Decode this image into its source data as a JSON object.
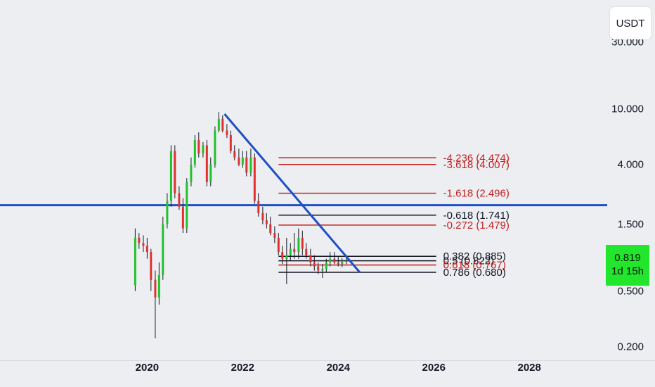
{
  "quote_unit": "USDT",
  "y_axis": {
    "ticks": [
      {
        "value": 30,
        "label": "30.000"
      },
      {
        "value": 10,
        "label": "10.000"
      },
      {
        "value": 4,
        "label": "4.000"
      },
      {
        "value": 1.5,
        "label": "1.500"
      },
      {
        "value": 0.5,
        "label": "0.500"
      },
      {
        "value": 0.2,
        "label": "0.200"
      }
    ]
  },
  "x_axis": {
    "ticks": [
      {
        "value": 2020,
        "label": "2020"
      },
      {
        "value": 2022,
        "label": "2022"
      },
      {
        "value": 2024,
        "label": "2024"
      },
      {
        "value": 2026,
        "label": "2026"
      },
      {
        "value": 2028,
        "label": "2028"
      }
    ]
  },
  "current_price": {
    "value": 0.819,
    "label": "0.819",
    "countdown": "1d 15h",
    "color": "#21e62b"
  },
  "colors": {
    "background": "#eceef2",
    "up": "#21c12b",
    "down": "#e0312f",
    "wick": "#131722",
    "trend": "#1e4fc4",
    "fib_black": "#131722",
    "fib_red": "#c4201c"
  },
  "chart_data": {
    "type": "candlestick",
    "title": "",
    "xlabel": "",
    "ylabel": "",
    "y_scale": "log",
    "xlim": [
      2016.92,
      2029.63
    ],
    "ylim": [
      0.16,
      60
    ],
    "series": [
      {
        "name": "",
        "x": [
          2019.75,
          2019.83,
          2019.92,
          2020.0,
          2020.08,
          2020.17,
          2020.25,
          2020.33,
          2020.42,
          2020.5,
          2020.58,
          2020.67,
          2020.75,
          2020.83,
          2020.92,
          2021.0,
          2021.08,
          2021.17,
          2021.25,
          2021.33,
          2021.42,
          2021.5,
          2021.58,
          2021.67,
          2021.75,
          2021.83,
          2021.92,
          2022.0,
          2022.08,
          2022.17,
          2022.25,
          2022.33,
          2022.42,
          2022.5,
          2022.58,
          2022.67,
          2022.75,
          2022.83,
          2022.92,
          2023.0,
          2023.08,
          2023.17,
          2023.25,
          2023.33,
          2023.42,
          2023.5,
          2023.58,
          2023.67,
          2023.75,
          2023.83,
          2023.92,
          2024.0,
          2024.08,
          2024.17
        ],
        "open": [
          0.55,
          1.2,
          1.1,
          1.05,
          0.95,
          0.6,
          0.45,
          0.65,
          1.5,
          2.2,
          5.0,
          2.5,
          2.0,
          1.4,
          3.0,
          4.0,
          6.0,
          4.8,
          5.5,
          3.0,
          4.0,
          7.0,
          8.5,
          7.0,
          6.5,
          5.0,
          4.5,
          4.0,
          4.5,
          3.5,
          4.5,
          2.2,
          1.8,
          1.6,
          1.5,
          1.3,
          1.2,
          0.95,
          0.85,
          0.9,
          1.0,
          0.95,
          1.2,
          1.0,
          0.9,
          0.8,
          0.75,
          0.7,
          0.72,
          0.8,
          0.85,
          0.8,
          0.78,
          0.82
        ],
        "high": [
          1.4,
          1.3,
          1.25,
          1.2,
          1.0,
          0.7,
          0.8,
          1.7,
          2.5,
          5.5,
          5.5,
          2.8,
          2.3,
          3.2,
          4.5,
          6.5,
          6.8,
          5.8,
          6.0,
          4.5,
          7.5,
          9.5,
          9.0,
          7.8,
          7.0,
          5.5,
          5.2,
          5.0,
          5.0,
          5.2,
          4.8,
          2.5,
          2.0,
          1.8,
          1.7,
          1.45,
          1.3,
          1.05,
          1.2,
          1.1,
          1.3,
          1.4,
          1.35,
          1.1,
          1.0,
          0.9,
          0.8,
          0.78,
          0.85,
          0.95,
          0.95,
          0.88,
          0.86,
          0.9
        ],
        "low": [
          0.5,
          1.0,
          0.95,
          0.85,
          0.5,
          0.23,
          0.4,
          0.6,
          1.4,
          2.0,
          2.3,
          1.9,
          1.3,
          1.3,
          2.8,
          3.8,
          4.5,
          4.5,
          2.8,
          2.8,
          3.8,
          6.8,
          6.8,
          6.2,
          4.8,
          4.3,
          3.9,
          3.8,
          3.3,
          3.3,
          2.1,
          1.7,
          1.5,
          1.4,
          1.25,
          1.1,
          0.9,
          0.78,
          0.56,
          0.82,
          0.85,
          0.85,
          0.9,
          0.85,
          0.75,
          0.7,
          0.66,
          0.62,
          0.68,
          0.75,
          0.78,
          0.75,
          0.74,
          0.78
        ],
        "close": [
          1.2,
          1.1,
          1.05,
          0.95,
          0.6,
          0.45,
          0.65,
          1.5,
          2.2,
          5.0,
          2.5,
          2.0,
          1.4,
          3.0,
          4.0,
          6.0,
          4.8,
          5.5,
          3.0,
          4.0,
          7.0,
          8.5,
          7.0,
          6.5,
          5.0,
          4.5,
          4.0,
          4.5,
          3.5,
          4.5,
          2.2,
          1.8,
          1.6,
          1.5,
          1.3,
          1.2,
          0.95,
          0.85,
          0.9,
          1.0,
          0.95,
          1.2,
          1.0,
          0.9,
          0.8,
          0.75,
          0.7,
          0.72,
          0.8,
          0.85,
          0.8,
          0.78,
          0.82,
          0.819
        ]
      }
    ],
    "horizontal_lines": [
      {
        "price": 2.05,
        "color": "#1e4fc4",
        "label": ""
      }
    ],
    "trend_lines": [
      {
        "x1": 2021.62,
        "y1": 9.2,
        "x2": 2024.45,
        "y2": 0.68,
        "color": "#1e4fc4"
      }
    ],
    "fib_levels": [
      {
        "ratio": "-4.236",
        "price": 4.474,
        "label": "-4.236 (4.474)",
        "color": "#c4201c"
      },
      {
        "ratio": "-3.618",
        "price": 4.007,
        "label": "-3.618 (4.007)",
        "color": "#c4201c"
      },
      {
        "ratio": "-1.618",
        "price": 2.496,
        "label": "-1.618 (2.496)",
        "color": "#c4201c"
      },
      {
        "ratio": "-0.618",
        "price": 1.741,
        "label": "-0.618 (1.741)",
        "color": "#131722"
      },
      {
        "ratio": "-0.272",
        "price": 1.479,
        "label": "-0.272 (1.479)",
        "color": "#c4201c"
      },
      {
        "ratio": "0.382",
        "price": 0.885,
        "label": "0.382 (0.885)",
        "color": "#131722"
      },
      {
        "ratio": "0.5",
        "price": 0.822,
        "label": "0.5 (0.822)",
        "color": "#131722"
      },
      {
        "ratio": "0.618",
        "price": 0.767,
        "label": "0.618 (0.767)",
        "color": "#c4201c"
      },
      {
        "ratio": "0.786",
        "price": 0.68,
        "label": "0.786 (0.680)",
        "color": "#131722"
      }
    ],
    "fib_range": {
      "x_start": 2022.75,
      "x_end": 2026.05
    }
  }
}
